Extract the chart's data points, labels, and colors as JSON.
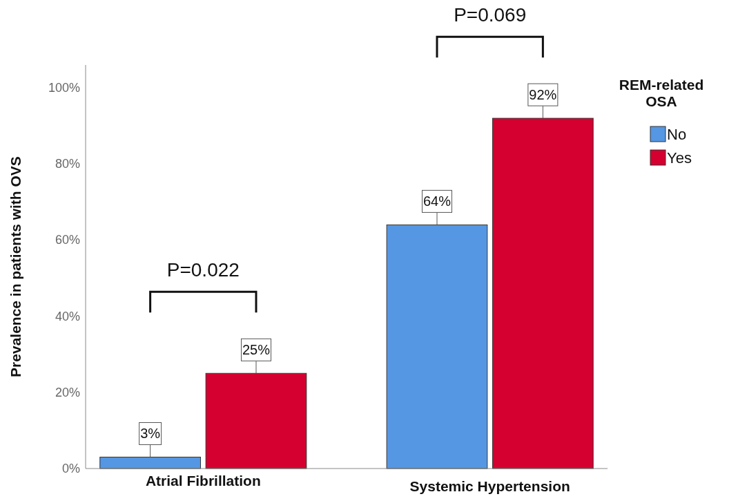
{
  "chart_data": {
    "type": "bar",
    "categories": [
      "Atrial Fibrillation",
      "Systemic Hypertension"
    ],
    "series": [
      {
        "name": "No",
        "color": "#5597e2",
        "values": [
          3,
          64
        ],
        "value_labels": [
          "3%",
          "64%"
        ]
      },
      {
        "name": "Yes",
        "color": "#d5002f",
        "values": [
          25,
          92
        ],
        "value_labels": [
          "25%",
          "92%"
        ]
      }
    ],
    "ylabel": "Prevalence in patients with OVS",
    "legend_title": "REM-related OSA",
    "legend": "right",
    "ylim": [
      0,
      106
    ],
    "yticks": [
      {
        "value": 0,
        "label": "0%"
      },
      {
        "value": 20,
        "label": "20%"
      },
      {
        "value": 40,
        "label": "40%"
      },
      {
        "value": 60,
        "label": "60%"
      },
      {
        "value": 80,
        "label": "80%"
      },
      {
        "value": 100,
        "label": "100%"
      }
    ],
    "grid": false,
    "annotations": [
      "P=0.022",
      "P=0.069"
    ]
  }
}
